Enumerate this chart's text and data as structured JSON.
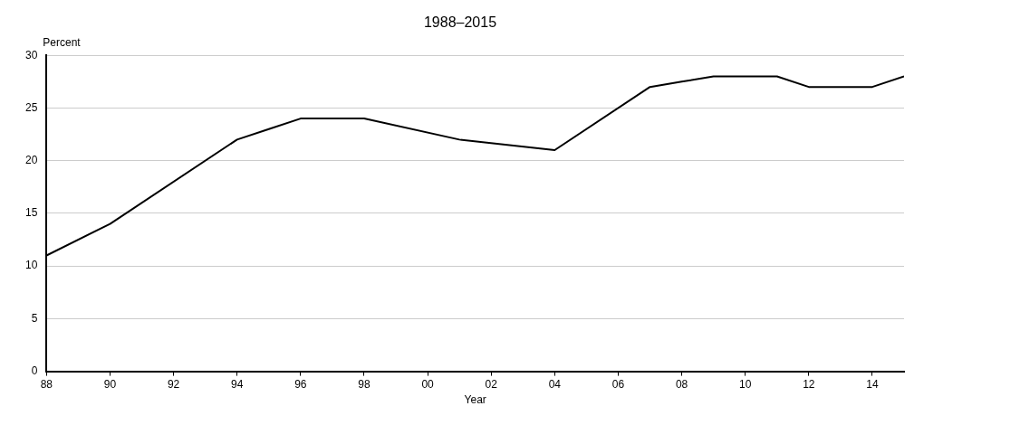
{
  "chart_data": {
    "type": "line",
    "title": "1988–2015",
    "xlabel": "Year",
    "ylabel": "Percent",
    "x": [
      1988,
      1990,
      1994,
      1995,
      1996,
      1998,
      2001,
      2004,
      2007,
      2008,
      2009,
      2011,
      2012,
      2014,
      2015
    ],
    "series": [
      {
        "color": "#000000",
        "values": [
          11,
          14,
          22,
          23,
          24,
          24,
          22,
          21,
          27,
          27.5,
          28,
          28,
          27,
          27,
          28
        ]
      }
    ],
    "xlim": [
      1988,
      2015
    ],
    "xticks": [
      {
        "value": 1988,
        "label": "88"
      },
      {
        "value": 1990,
        "label": "90"
      },
      {
        "value": 1992,
        "label": "92"
      },
      {
        "value": 1994,
        "label": "94"
      },
      {
        "value": 1996,
        "label": "96"
      },
      {
        "value": 1998,
        "label": "98"
      },
      {
        "value": 2000,
        "label": "00"
      },
      {
        "value": 2002,
        "label": "02"
      },
      {
        "value": 2004,
        "label": "04"
      },
      {
        "value": 2006,
        "label": "06"
      },
      {
        "value": 2008,
        "label": "08"
      },
      {
        "value": 2010,
        "label": "10"
      },
      {
        "value": 2012,
        "label": "12"
      },
      {
        "value": 2014,
        "label": "14"
      }
    ],
    "ylim": [
      0,
      30
    ],
    "yticks": [
      0,
      5,
      10,
      15,
      20,
      25,
      30
    ],
    "grid": "y",
    "marker": "none",
    "line_style": "solid"
  }
}
